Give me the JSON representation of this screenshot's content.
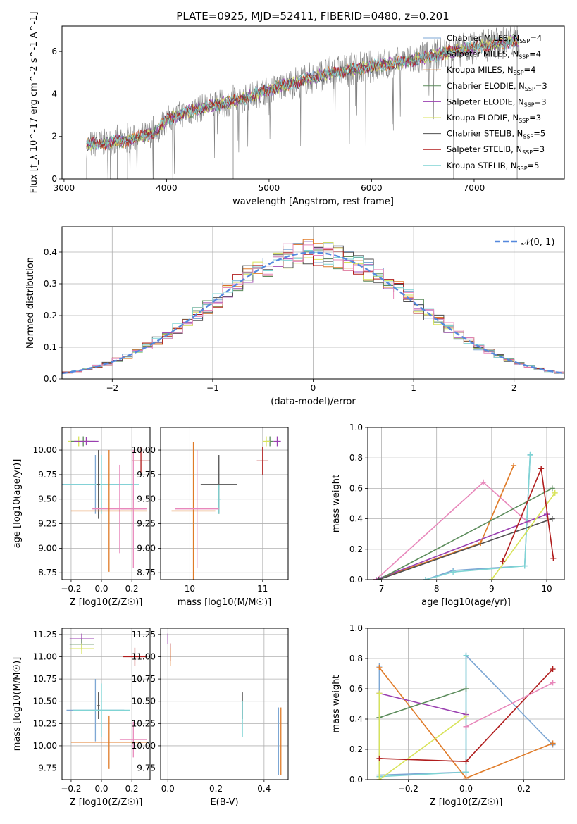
{
  "figure_title": "PLATE=0925, MJD=52411, FIBERID=0480, z=0.201",
  "colors": {
    "c0": "#7da7d4",
    "c1": "#a24ab4",
    "c2": "#e07b28",
    "c3": "#5c8c5c",
    "c4": "#9a3fb0",
    "c5": "#d8e35a",
    "c6": "#505050",
    "c7": "#b01c1c",
    "c8": "#7fd4d4",
    "pink": "#e888bb",
    "data": "#808080",
    "gauss": "#5588dd"
  },
  "chart_data": [
    {
      "id": "spectrum",
      "type": "line",
      "xlabel": "wavelength [Angstrom, rest frame]",
      "ylabel": "Flux [f_λ 10^-17 erg cm^-2 s^-1 A^-1]",
      "xlim": [
        2980,
        7880
      ],
      "ylim": [
        0,
        7.2
      ],
      "xticks": [
        3000,
        4000,
        5000,
        6000,
        7000
      ],
      "yticks": [
        0,
        2,
        4,
        6
      ],
      "legend_position": "upper-right",
      "grid": false,
      "series": [
        {
          "name": "Chabrier MILES, N_SSP=4",
          "color": "#7da7d4"
        },
        {
          "name": "Salpeter MILES, N_SSP=4",
          "color": "#a24ab4"
        },
        {
          "name": "Kroupa MILES, N_SSP=4",
          "color": "#e07b28"
        },
        {
          "name": "Chabrier ELODIE, N_SSP=3",
          "color": "#5c8c5c"
        },
        {
          "name": "Salpeter ELODIE, N_SSP=3",
          "color": "#9a3fb0"
        },
        {
          "name": "Kroupa ELODIE, N_SSP=3",
          "color": "#d8e35a"
        },
        {
          "name": "Chabrier STELIB, N_SSP=5",
          "color": "#505050"
        },
        {
          "name": "Salpeter STELIB, N_SSP=3",
          "color": "#b01c1c"
        },
        {
          "name": "Kroupa STELIB, N_SSP=5",
          "color": "#7fd4d4"
        }
      ],
      "continuum": {
        "x": [
          3220,
          3600,
          3900,
          4000,
          4300,
          4700,
          5000,
          5300,
          5600,
          6000,
          6300,
          6700,
          7000,
          7400
        ],
        "y": [
          1.6,
          1.8,
          2.2,
          2.8,
          3.3,
          3.7,
          4.2,
          4.6,
          5.0,
          5.3,
          5.5,
          5.9,
          6.2,
          6.5
        ]
      }
    },
    {
      "id": "residuals",
      "type": "histogram",
      "xlabel": "(data-model)/error",
      "ylabel": "Normed distribution",
      "xlim": [
        -2.5,
        2.5
      ],
      "ylim": [
        0,
        0.48
      ],
      "xticks": [
        -2,
        -1,
        0,
        1,
        2
      ],
      "yticks": [
        0.0,
        0.1,
        0.2,
        0.3,
        0.4
      ],
      "grid": true,
      "legend_position": "upper-right",
      "reference_curve": {
        "name": "N(0,1)",
        "mean": 0,
        "sigma": 1
      },
      "bin_edges": [
        -2.5,
        2.5
      ],
      "bin_count": 50
    },
    {
      "id": "age-vs-Z",
      "type": "errorbar",
      "xlabel": "Z [log10(Z/Z☉)]",
      "ylabel": "age [log10(age/yr)]",
      "xlim": [
        -0.26,
        0.32
      ],
      "ylim": [
        8.68,
        10.23
      ],
      "xticks": [
        -0.2,
        0.0,
        0.2
      ],
      "yticks": [
        8.75,
        9.0,
        9.25,
        9.5,
        9.75,
        10.0
      ],
      "grid": true,
      "points": [
        {
          "x": -0.15,
          "xerr": 0.07,
          "y": 10.09,
          "yerr": 0.05,
          "color": "#d8e35a"
        },
        {
          "x": -0.12,
          "xerr": 0.08,
          "y": 10.09,
          "yerr": 0.05,
          "color": "#5c8c5c"
        },
        {
          "x": -0.1,
          "xerr": 0.08,
          "y": 10.09,
          "yerr": 0.04,
          "color": "#9a3fb0"
        },
        {
          "x": 0.26,
          "xerr": 0.06,
          "y": 9.89,
          "yerr": 0.14,
          "color": "#b01c1c"
        },
        {
          "x": -0.04,
          "xerr": 0.25,
          "y": 9.65,
          "yerr": 0.3,
          "color": "#7da7d4"
        },
        {
          "x": 0.0,
          "xerr": 0.25,
          "y": 9.65,
          "yerr": 0.3,
          "color": "#7fd4d4"
        },
        {
          "x": -0.02,
          "xerr": 0.01,
          "y": 9.65,
          "yerr": 0.35,
          "color": "#505050"
        },
        {
          "x": 0.12,
          "xerr": 0.18,
          "y": 9.4,
          "yerr": 0.45,
          "color": "#e888bb"
        },
        {
          "x": 0.05,
          "xerr": 0.25,
          "y": 9.38,
          "yerr": 0.62,
          "color": "#e07b28"
        },
        {
          "x": 0.21,
          "xerr": 0.08,
          "y": 9.4,
          "yerr": 0.6,
          "color": "#e888bb"
        }
      ]
    },
    {
      "id": "age-vs-mass",
      "type": "errorbar",
      "xlabel": "mass [log10(M/M☉)]",
      "ylabel": "",
      "xlim": [
        9.6,
        11.35
      ],
      "ylim": [
        8.68,
        10.23
      ],
      "xticks": [
        10,
        11
      ],
      "yticks": [
        8.75,
        9.0,
        9.25,
        9.5,
        9.75,
        10.0
      ],
      "grid": true,
      "points": [
        {
          "x": 11.2,
          "xerr": 0.05,
          "y": 10.09,
          "yerr": 0.05,
          "color": "#9a3fb0"
        },
        {
          "x": 11.1,
          "xerr": 0.05,
          "y": 10.09,
          "yerr": 0.05,
          "color": "#5c8c5c"
        },
        {
          "x": 11.05,
          "xerr": 0.05,
          "y": 10.09,
          "yerr": 0.05,
          "color": "#d8e35a"
        },
        {
          "x": 11.0,
          "xerr": 0.08,
          "y": 9.89,
          "yerr": 0.14,
          "color": "#b01c1c"
        },
        {
          "x": 10.4,
          "xerr": 0.25,
          "y": 9.65,
          "yerr": 0.3,
          "color": "#505050"
        },
        {
          "x": 10.4,
          "xerr": 0.02,
          "y": 9.5,
          "yerr": 0.15,
          "color": "#7fd4d4"
        },
        {
          "x": 10.05,
          "xerr": 0.3,
          "y": 9.38,
          "yerr": 0.7,
          "color": "#e07b28"
        },
        {
          "x": 10.1,
          "xerr": 0.3,
          "y": 9.4,
          "yerr": 0.6,
          "color": "#e888bb"
        }
      ]
    },
    {
      "id": "weight-vs-age",
      "type": "line",
      "xlabel": "age [log10(age/yr)]",
      "ylabel": "mass weight",
      "xlim": [
        6.75,
        10.32
      ],
      "ylim": [
        0,
        1.0
      ],
      "xticks": [
        7,
        8,
        9,
        10
      ],
      "yticks": [
        0.0,
        0.2,
        0.4,
        0.6,
        0.8,
        1.0
      ],
      "grid": true,
      "series": [
        {
          "color": "#e888bb",
          "x": [
            6.9,
            8.85,
            9.65
          ],
          "y": [
            0.0,
            0.64,
            0.38
          ]
        },
        {
          "color": "#e07b28",
          "x": [
            6.9,
            8.8,
            9.4
          ],
          "y": [
            0.0,
            0.24,
            0.75
          ]
        },
        {
          "color": "#7da7d4",
          "x": [
            7.8,
            8.3,
            9.6,
            9.7
          ],
          "y": [
            0.0,
            0.06,
            0.09,
            0.82
          ]
        },
        {
          "color": "#7fd4d4",
          "x": [
            7.8,
            8.3,
            9.6,
            9.7
          ],
          "y": [
            0.0,
            0.05,
            0.09,
            0.82
          ]
        },
        {
          "color": "#9a3fb0",
          "x": [
            6.9,
            10.0
          ],
          "y": [
            0.0,
            0.43
          ]
        },
        {
          "color": "#5c8c5c",
          "x": [
            6.95,
            10.1
          ],
          "y": [
            0.0,
            0.6
          ]
        },
        {
          "color": "#505050",
          "x": [
            6.95,
            10.1
          ],
          "y": [
            0.0,
            0.4
          ]
        },
        {
          "color": "#d8e35a",
          "x": [
            9.0,
            10.15
          ],
          "y": [
            0.0,
            0.57
          ]
        },
        {
          "color": "#b01c1c",
          "x": [
            9.2,
            9.9,
            10.12
          ],
          "y": [
            0.12,
            0.73,
            0.14
          ]
        }
      ]
    },
    {
      "id": "mass-vs-Z",
      "type": "errorbar",
      "xlabel": "Z [log10(Z/Z☉)]",
      "ylabel": "mass [log10(M/M☉)]",
      "xlim": [
        -0.26,
        0.32
      ],
      "ylim": [
        9.62,
        11.32
      ],
      "xticks": [
        -0.2,
        0.0,
        0.2
      ],
      "yticks": [
        9.75,
        10.0,
        10.25,
        10.5,
        10.75,
        11.0,
        11.25
      ],
      "grid": true,
      "points": [
        {
          "x": -0.13,
          "xerr": 0.08,
          "y": 11.2,
          "yerr": 0.06,
          "color": "#9a3fb0"
        },
        {
          "x": -0.13,
          "xerr": 0.08,
          "y": 11.14,
          "yerr": 0.06,
          "color": "#5c8c5c"
        },
        {
          "x": -0.13,
          "xerr": 0.08,
          "y": 11.09,
          "yerr": 0.06,
          "color": "#d8e35a"
        },
        {
          "x": 0.22,
          "xerr": 0.08,
          "y": 11.0,
          "yerr": 0.1,
          "color": "#b01c1c"
        },
        {
          "x": -0.02,
          "xerr": 0.01,
          "y": 10.45,
          "yerr": 0.15,
          "color": "#505050"
        },
        {
          "x": -0.04,
          "xerr": 0.19,
          "y": 10.4,
          "yerr": 0.35,
          "color": "#7da7d4"
        },
        {
          "x": 0.0,
          "xerr": 0.19,
          "y": 10.4,
          "yerr": 0.3,
          "color": "#7fd4d4"
        },
        {
          "x": 0.21,
          "xerr": 0.09,
          "y": 10.07,
          "yerr": 0.2,
          "color": "#e888bb"
        },
        {
          "x": 0.05,
          "xerr": 0.25,
          "y": 10.04,
          "yerr": 0.3,
          "color": "#e07b28"
        }
      ]
    },
    {
      "id": "mass-vs-EBV",
      "type": "errorbar",
      "xlabel": "E(B-V)",
      "ylabel": "",
      "xlim": [
        -0.03,
        0.5
      ],
      "ylim": [
        9.62,
        11.32
      ],
      "xticks": [
        0.0,
        0.2,
        0.4
      ],
      "yticks": [
        9.75,
        10.0,
        10.25,
        10.5,
        10.75,
        11.0,
        11.25
      ],
      "grid": true,
      "points": [
        {
          "x": 0.0,
          "xerr": 0.0,
          "y": 11.2,
          "yerr": 0.06,
          "color": "#9a3fb0"
        },
        {
          "x": 0.01,
          "xerr": 0.0,
          "y": 11.05,
          "yerr": 0.1,
          "color": "#b01c1c"
        },
        {
          "x": 0.01,
          "xerr": 0.0,
          "y": 11.0,
          "yerr": 0.1,
          "color": "#e07b28"
        },
        {
          "x": 0.31,
          "xerr": 0.0,
          "y": 10.45,
          "yerr": 0.15,
          "color": "#505050"
        },
        {
          "x": 0.31,
          "xerr": 0.0,
          "y": 10.3,
          "yerr": 0.2,
          "color": "#7fd4d4"
        },
        {
          "x": 0.46,
          "xerr": 0.0,
          "y": 10.05,
          "yerr": 0.38,
          "color": "#7da7d4"
        },
        {
          "x": 0.47,
          "xerr": 0.0,
          "y": 10.05,
          "yerr": 0.38,
          "color": "#e07b28"
        }
      ]
    },
    {
      "id": "weight-vs-Z",
      "type": "line",
      "xlabel": "Z [log10(Z/Z☉)]",
      "ylabel": "mass weight",
      "xlim": [
        -0.34,
        0.34
      ],
      "ylim": [
        0,
        1.0
      ],
      "xticks": [
        -0.2,
        0.0,
        0.2
      ],
      "yticks": [
        0.0,
        0.2,
        0.4,
        0.6,
        0.8,
        1.0
      ],
      "grid": true,
      "series": [
        {
          "color": "#7da7d4",
          "x": [
            -0.3,
            -0.3,
            0.0,
            0.0,
            0.3
          ],
          "y": [
            0.75,
            0.03,
            0.05,
            0.82,
            0.23
          ]
        },
        {
          "color": "#7fd4d4",
          "x": [
            -0.3,
            0.0,
            0.0
          ],
          "y": [
            0.02,
            0.05,
            0.82
          ]
        },
        {
          "color": "#e07b28",
          "x": [
            -0.3,
            0.0,
            0.3
          ],
          "y": [
            0.74,
            0.01,
            0.24
          ]
        },
        {
          "color": "#9a3fb0",
          "x": [
            -0.3,
            0.0
          ],
          "y": [
            0.57,
            0.43
          ]
        },
        {
          "color": "#5c8c5c",
          "x": [
            -0.3,
            0.0
          ],
          "y": [
            0.41,
            0.6
          ]
        },
        {
          "color": "#d8e35a",
          "x": [
            -0.3,
            -0.3,
            0.0
          ],
          "y": [
            0.57,
            0.0,
            0.42
          ]
        },
        {
          "color": "#b01c1c",
          "x": [
            -0.3,
            0.0,
            0.3
          ],
          "y": [
            0.14,
            0.12,
            0.73
          ]
        },
        {
          "color": "#e888bb",
          "x": [
            0.0,
            0.3
          ],
          "y": [
            0.35,
            0.64
          ]
        }
      ]
    }
  ]
}
